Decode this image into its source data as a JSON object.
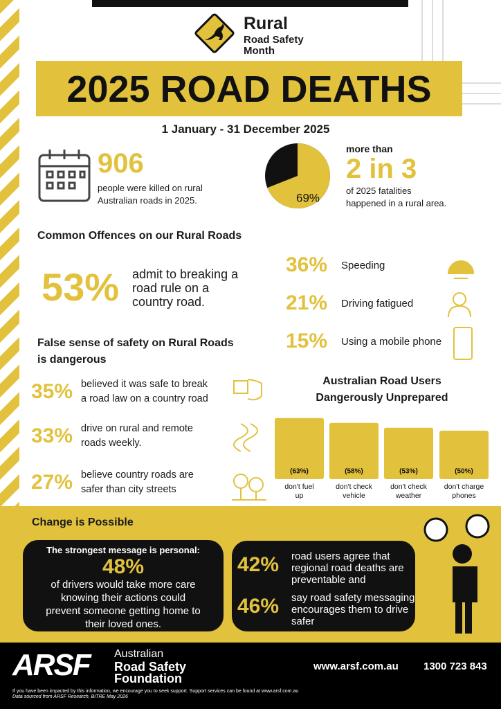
{
  "header": {
    "logo_title": "Rural",
    "logo_subtitle_1": "Road Safety",
    "logo_subtitle_2": "Month",
    "title": "2025 ROAD DEATHS",
    "date_range": "1 January - 31 December 2025"
  },
  "stats": {
    "killed": {
      "number": "906",
      "text_1": "people were killed on rural",
      "text_2": "Australian roads in 2025."
    },
    "rural_share": {
      "pie": {
        "value": 69,
        "label": "69%"
      },
      "prefix": "more than",
      "headline": "2 in 3",
      "text_1": "of 2025 fatalities",
      "text_2": "happened in a rural area."
    }
  },
  "offences": {
    "title": "Common Offences on our Rural Roads",
    "main": {
      "number": "53%",
      "lines": [
        "admit to breaking a",
        "road rule on a",
        "country road."
      ]
    },
    "items": [
      {
        "number": "36%",
        "label": "Speeding"
      },
      {
        "number": "21%",
        "label": "Driving fatigued"
      },
      {
        "number": "15%",
        "label": "Using a mobile phone"
      }
    ]
  },
  "false_safety": {
    "title_1": "False sense of safety on Rural Roads",
    "title_2": "is dangerous",
    "items": [
      {
        "number": "35%",
        "lines": [
          "believed it was safe to break",
          "a road law on a country road"
        ]
      },
      {
        "number": "33%",
        "lines": [
          "drive on rural and remote",
          "roads weekly."
        ]
      },
      {
        "number": "27%",
        "lines": [
          "believe country roads are",
          "safer than city streets"
        ]
      }
    ]
  },
  "unprepared": {
    "title_1": "Australian Road Users",
    "title_2": "Dangerously Unprepared",
    "bars": [
      {
        "value": 63,
        "label": "(63%)",
        "caption": [
          "don't fuel",
          "up"
        ]
      },
      {
        "value": 58,
        "label": "(58%)",
        "caption": [
          "don't check",
          "vehicle"
        ]
      },
      {
        "value": 53,
        "label": "(53%)",
        "caption": [
          "don't check",
          "weather"
        ]
      },
      {
        "value": 50,
        "label": "(50%)",
        "caption": [
          "don't charge",
          "phones"
        ]
      }
    ]
  },
  "change": {
    "title": "Change is Possible",
    "box_1": {
      "heading": "The strongest message is personal:",
      "number": "48%",
      "lines": [
        "of drivers would take more care",
        "knowing their actions could",
        "prevent someone getting home to",
        "their loved ones."
      ]
    },
    "box_2": [
      {
        "number": "42%",
        "lines": [
          "road users agree that",
          "regional road deaths are",
          "preventable and"
        ]
      },
      {
        "number": "46%",
        "lines": [
          "say road safety messaging",
          "encourages them to drive",
          "safer"
        ]
      }
    ]
  },
  "footer": {
    "logo_mark": "ARSF",
    "org_1": "Australian",
    "org_2": "Road Safety",
    "org_3": "Foundation",
    "website": "www.arsf.com.au",
    "phone": "1300 723 843",
    "note_1": "If you have been impacted by this information, we encourage you to seek support. Support services can be found at www.arsf.com.au",
    "note_2": "Data sourced from ARSF Research, BITRE May 2026"
  }
}
